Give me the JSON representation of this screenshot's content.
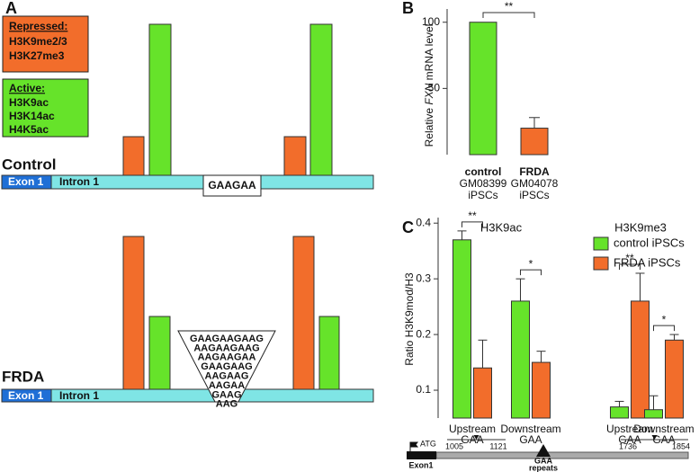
{
  "panels": [
    "A",
    "B",
    "C"
  ],
  "diagram": {
    "legend_repressed": {
      "title": "Repressed:",
      "marks": [
        "H3K9me2/3",
        "H3K27me3"
      ]
    },
    "legend_active": {
      "title": "Active:",
      "marks": [
        "H3K9ac",
        "H3K14ac",
        "H4K5ac"
      ]
    },
    "control": {
      "label": "Control",
      "exon": "Exon 1",
      "intron": "Intron 1",
      "repeat": "GAAGAA"
    },
    "frda": {
      "label": "FRDA",
      "exon": "Exon 1",
      "intron": "Intron 1",
      "repeat": [
        "GAAGAAGAAG",
        "AAGAAGAAG",
        "AAGAAGAA",
        "GAAGAAG",
        "AAGAAG",
        "AAGAA",
        "GAAG",
        "AAG"
      ]
    }
  },
  "chart_data": [
    {
      "type": "bar",
      "y_label": [
        "Relative ",
        "FXN",
        " mRNA level"
      ],
      "categories": [
        "control",
        "FRDA"
      ],
      "category_sublabels": [
        [
          "GM08399",
          "iPSCs"
        ],
        [
          "GM04078",
          "iPSCs"
        ]
      ],
      "values": [
        100,
        20
      ],
      "errors": [
        null,
        8
      ],
      "colors": [
        "#66e32a",
        "#f26d2b"
      ],
      "ylim": [
        0,
        110
      ],
      "yticks": [
        50,
        100
      ],
      "significance": "**"
    },
    {
      "type": "grouped_bar",
      "groups": [
        "H3K9ac",
        "H3K9me3"
      ],
      "y_label": "Ratio H3K9mod/H3",
      "categories": [
        [
          "Upstream",
          "GAA"
        ],
        [
          "Downstream",
          "GAA"
        ],
        [
          "Upstream",
          "GAA"
        ],
        [
          "Downstream",
          "GAA"
        ]
      ],
      "series": [
        {
          "name": "control iPSCs",
          "color": "#66e32a",
          "values": [
            0.37,
            0.26,
            0.07,
            0.065
          ],
          "errors": [
            0.016,
            0.04,
            0.01,
            0.025
          ]
        },
        {
          "name": "FRDA iPSCs",
          "color": "#f26d2b",
          "values": [
            0.14,
            0.15,
            0.26,
            0.19
          ],
          "errors": [
            0.05,
            0.02,
            0.05,
            0.01
          ]
        }
      ],
      "ylim": [
        0.05,
        0.41
      ],
      "yticks": [
        0.1,
        0.2,
        0.3,
        0.4
      ],
      "significance": [
        "**",
        "*",
        "**",
        "*"
      ],
      "gene_map": {
        "start": "ATG",
        "exon": "Exon1",
        "positions": [
          "1005",
          "1121",
          "1736",
          "1854"
        ],
        "repeat": [
          "GAA",
          "repeats"
        ]
      }
    }
  ]
}
